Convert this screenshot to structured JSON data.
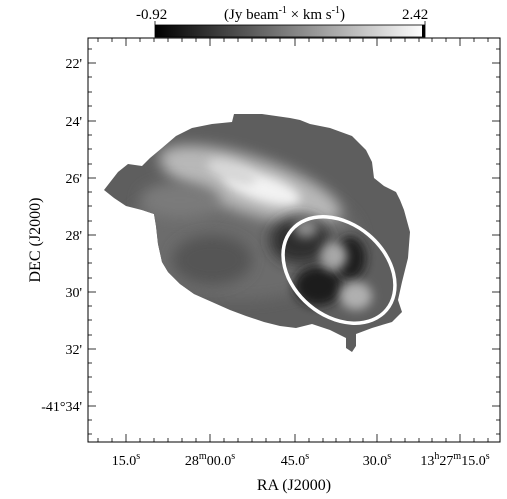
{
  "colorbar": {
    "min_label": "-0.92",
    "max_label": "2.42",
    "unit_label": "(Jy beam$^{-1}$ × km s$^{-1}$)",
    "unit_parts": {
      "pre": "(Jy beam",
      "sup1": "-1",
      "mid": " × km s",
      "sup2": "-1",
      "post": ")"
    },
    "colormap": "grayscale",
    "range": [
      -0.92,
      2.42
    ]
  },
  "axes": {
    "xlabel": "RA (J2000)",
    "ylabel": "DEC (J2000)",
    "x_ticks": [
      {
        "text": "15.0",
        "sup": "s"
      },
      {
        "text": "28",
        "sup": "m",
        "text2": "00.0",
        "sup2": "s"
      },
      {
        "text": "45.0",
        "sup": "s"
      },
      {
        "text": "30.0",
        "sup": "s"
      },
      {
        "text": "13",
        "sup": "h",
        "text2": "27",
        "sup2": "m",
        "text3": "15.0",
        "sup3": "s"
      }
    ],
    "y_ticks": [
      "22'",
      "24'",
      "26'",
      "28'",
      "30'",
      "32'",
      "-41°34'"
    ]
  },
  "map": {
    "description_colors": {
      "background": "#ffffff",
      "emission": "#5c5c5c",
      "ellipse": "#ffffff"
    }
  }
}
